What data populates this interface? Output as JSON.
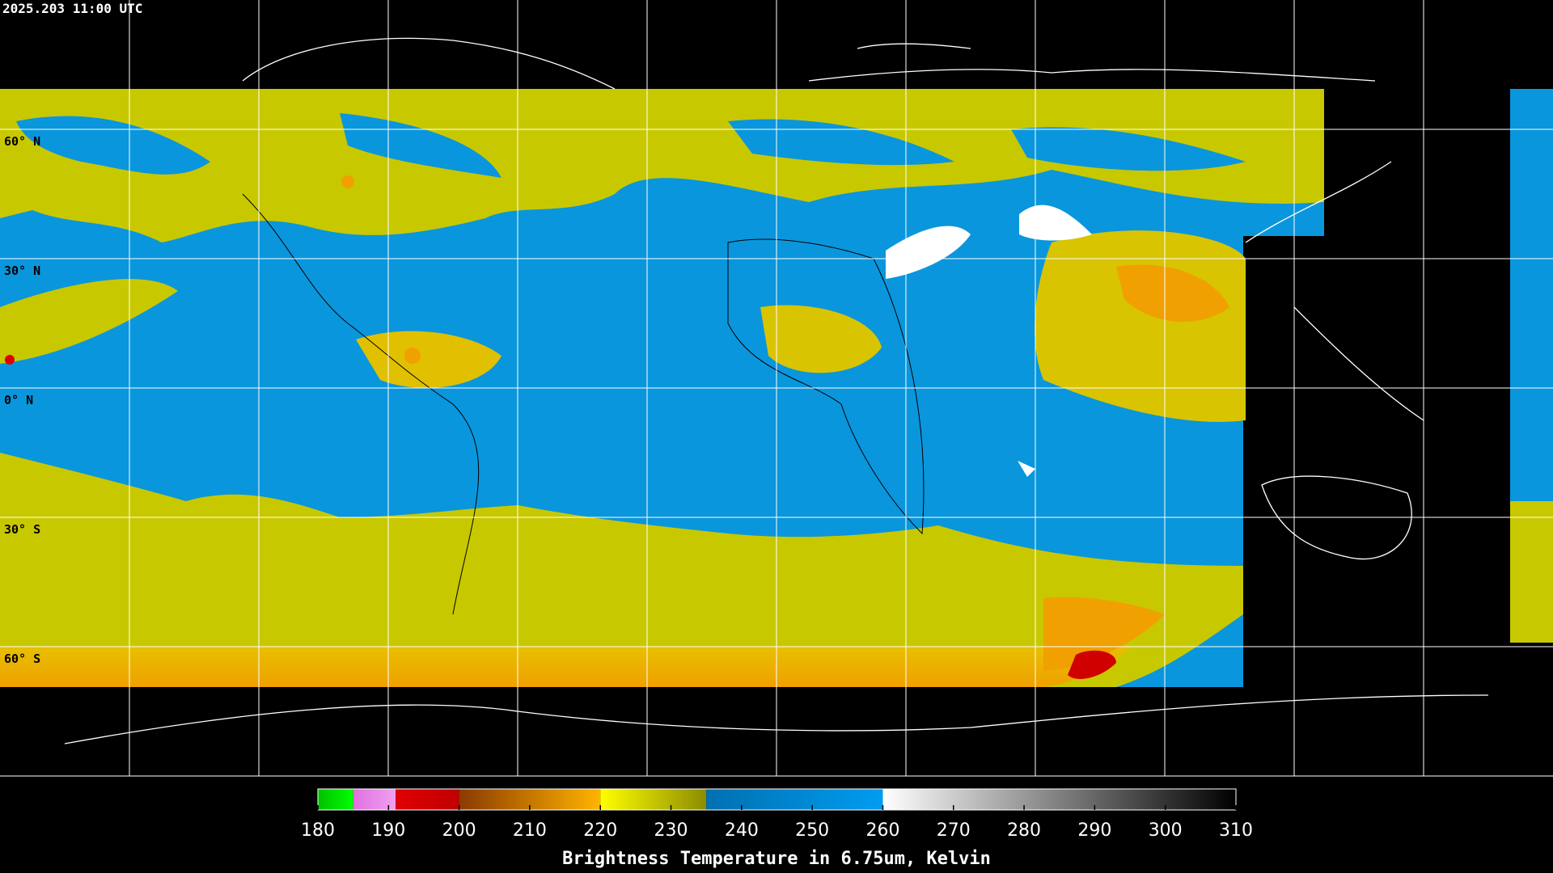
{
  "header": {
    "timestamp": "2025.203 11:00 UTC"
  },
  "map": {
    "latitude_labels": [
      "60° N",
      "30° N",
      "0° N",
      "30° S",
      "60° S"
    ]
  },
  "colorbar": {
    "range": [
      180,
      310
    ],
    "ticks": [
      180,
      190,
      200,
      210,
      220,
      230,
      240,
      250,
      260,
      270,
      280,
      290,
      300,
      310
    ],
    "segments": [
      {
        "from": 180,
        "to": 185,
        "colors": [
          "#00c000",
          "#00ff00"
        ]
      },
      {
        "from": 185,
        "to": 191,
        "colors": [
          "#e070e0",
          "#f0a0f0"
        ]
      },
      {
        "from": 191,
        "to": 200,
        "colors": [
          "#e00000",
          "#c00000"
        ]
      },
      {
        "from": 200,
        "to": 220,
        "colors": [
          "#8a3a00",
          "#ffb400"
        ]
      },
      {
        "from": 220,
        "to": 235,
        "colors": [
          "#ffff00",
          "#8c8c00"
        ]
      },
      {
        "from": 235,
        "to": 260,
        "colors": [
          "#0070b0",
          "#009cf0"
        ]
      },
      {
        "from": 260,
        "to": 310,
        "colors": [
          "#ffffff",
          "#000000"
        ]
      }
    ],
    "label": "Brightness Temperature in 6.75um, Kelvin"
  }
}
